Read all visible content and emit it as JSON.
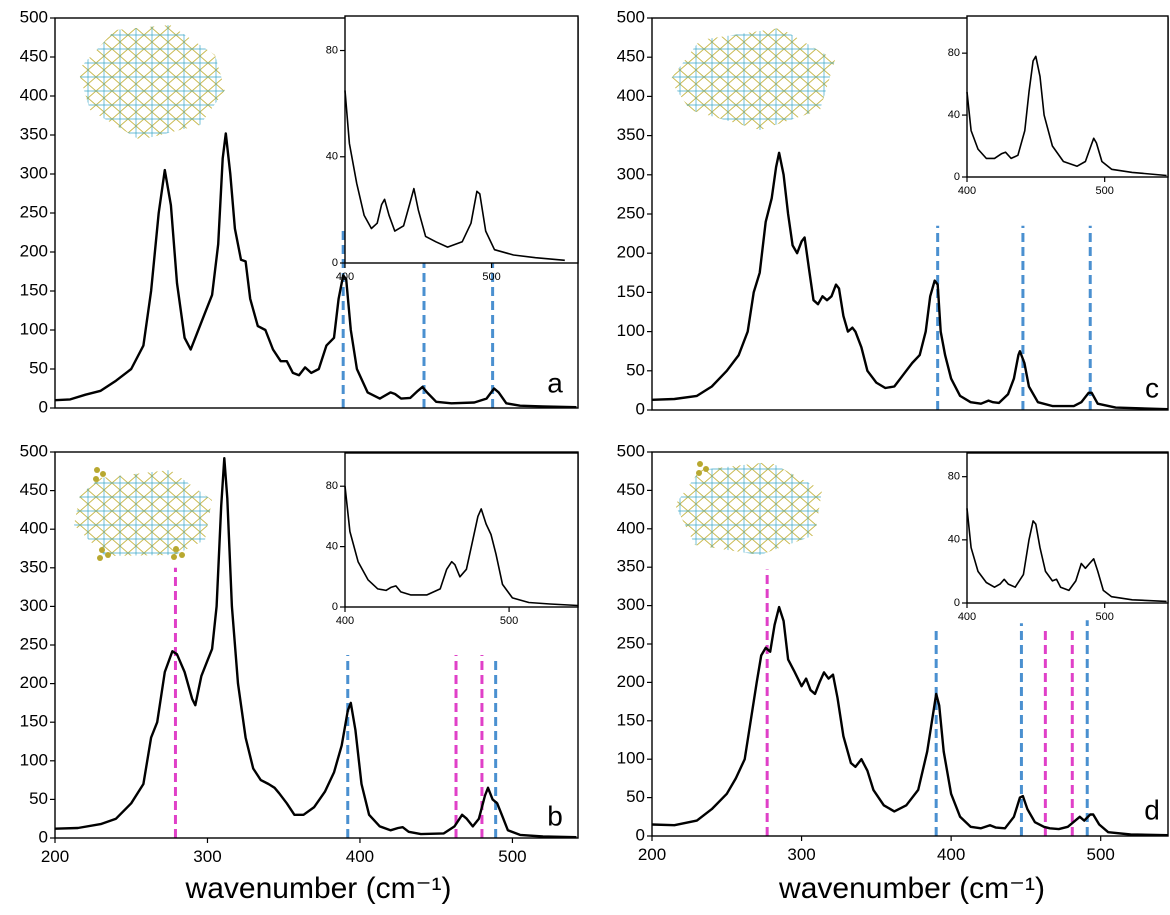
{
  "chart_data": [
    {
      "type": "line",
      "label": "a",
      "color": "#000000",
      "x": [
        200,
        210,
        220,
        230,
        240,
        250,
        258,
        263,
        268,
        272,
        276,
        280,
        285,
        289,
        293,
        298,
        303,
        307,
        310,
        312,
        315,
        318,
        322,
        325,
        328,
        333,
        338,
        343,
        348,
        352,
        356,
        360,
        364,
        368,
        373,
        378,
        383,
        386,
        389,
        391,
        394,
        398,
        405,
        413,
        420,
        423,
        427,
        433,
        438,
        441,
        444,
        450,
        460,
        475,
        483,
        488,
        491,
        496,
        505,
        520,
        542
      ],
      "values": [
        10,
        11,
        17,
        22,
        35,
        50,
        80,
        150,
        250,
        305,
        260,
        160,
        90,
        75,
        95,
        120,
        145,
        210,
        320,
        352,
        300,
        230,
        190,
        188,
        140,
        105,
        100,
        75,
        60,
        60,
        45,
        42,
        52,
        45,
        50,
        80,
        90,
        140,
        170,
        165,
        100,
        50,
        20,
        12,
        20,
        18,
        12,
        13,
        22,
        27,
        20,
        8,
        6,
        7,
        12,
        25,
        20,
        6,
        3,
        2,
        1
      ],
      "xlim": [
        200,
        543
      ],
      "ylim": [
        0,
        500
      ],
      "yticks": [
        0,
        50,
        100,
        150,
        200,
        250,
        300,
        350,
        400,
        450,
        500
      ],
      "vlines": [
        {
          "x": 389,
          "top": 230,
          "color": "#4a90d0"
        },
        {
          "x": 442,
          "top": 230,
          "color": "#4a90d0"
        },
        {
          "x": 487,
          "top": 230,
          "color": "#4a90d0"
        }
      ],
      "inset": {
        "type": "line",
        "color": "#000000",
        "x": [
          400,
          403,
          408,
          413,
          418,
          422,
          425,
          427,
          430,
          434,
          440,
          444,
          447,
          450,
          455,
          462,
          470,
          480,
          486,
          490,
          492,
          496,
          502,
          515,
          530,
          550
        ],
        "values": [
          65,
          45,
          30,
          18,
          13,
          15,
          22,
          24,
          18,
          12,
          14,
          22,
          28,
          20,
          10,
          8,
          6,
          8,
          15,
          27,
          26,
          12,
          5,
          3,
          2,
          1
        ],
        "xlim": [
          400,
          559
        ],
        "ylim": [
          0,
          93
        ],
        "xticks": [
          400,
          500
        ],
        "yticks": [
          0,
          40,
          80
        ]
      }
    },
    {
      "type": "line",
      "label": "b",
      "color": "#000000",
      "x": [
        200,
        215,
        230,
        240,
        250,
        258,
        263,
        267,
        272,
        277,
        280,
        285,
        290,
        292,
        296,
        300,
        303,
        306,
        309,
        311,
        313,
        316,
        320,
        325,
        330,
        335,
        340,
        344,
        347,
        352,
        357,
        363,
        370,
        377,
        383,
        388,
        392,
        394,
        397,
        401,
        406,
        413,
        420,
        425,
        428,
        432,
        440,
        455,
        462,
        467,
        470,
        474,
        478,
        482,
        484,
        487,
        490,
        493,
        497,
        505,
        520,
        542
      ],
      "values": [
        12,
        13,
        18,
        25,
        45,
        70,
        130,
        150,
        215,
        242,
        238,
        215,
        180,
        172,
        210,
        230,
        245,
        300,
        430,
        492,
        440,
        300,
        200,
        130,
        90,
        75,
        70,
        65,
        58,
        45,
        30,
        30,
        40,
        60,
        85,
        120,
        165,
        175,
        140,
        70,
        30,
        15,
        10,
        13,
        14,
        8,
        5,
        6,
        15,
        30,
        25,
        15,
        25,
        55,
        65,
        50,
        45,
        30,
        10,
        4,
        2,
        1
      ],
      "xlim": [
        200,
        543
      ],
      "ylim": [
        0,
        500
      ],
      "yticks": [
        0,
        50,
        100,
        150,
        200,
        250,
        300,
        350,
        400,
        450,
        500
      ],
      "xticks": [
        200,
        300,
        400,
        500
      ],
      "x_label": "wavenumber (cm⁻¹)",
      "vlines": [
        {
          "x": 279,
          "top": 350,
          "color": "#e040c8"
        },
        {
          "x": 392,
          "top": 237,
          "color": "#4a90d0"
        },
        {
          "x": 463,
          "top": 237,
          "color": "#e040c8"
        },
        {
          "x": 480,
          "top": 237,
          "color": "#e040c8"
        },
        {
          "x": 489,
          "top": 231,
          "color": "#4a90d0"
        }
      ],
      "inset": {
        "type": "line",
        "color": "#000000",
        "x": [
          400,
          403,
          408,
          414,
          420,
          425,
          428,
          431,
          434,
          440,
          450,
          458,
          462,
          465,
          467,
          470,
          474,
          478,
          481,
          483,
          486,
          489,
          492,
          496,
          502,
          512,
          525,
          542
        ],
        "values": [
          80,
          50,
          30,
          18,
          12,
          11,
          13,
          14,
          10,
          8,
          8,
          12,
          25,
          30,
          28,
          20,
          25,
          45,
          60,
          65,
          55,
          48,
          35,
          15,
          6,
          3,
          2,
          1
        ],
        "xlim": [
          400,
          542
        ],
        "ylim": [
          0,
          102
        ],
        "xticks": [
          400,
          500
        ],
        "yticks": [
          0,
          40,
          80
        ]
      }
    },
    {
      "type": "line",
      "label": "c",
      "color": "#000000",
      "x": [
        200,
        215,
        230,
        240,
        250,
        258,
        264,
        268,
        272,
        276,
        280,
        283,
        285,
        288,
        291,
        294,
        297,
        300,
        302,
        305,
        308,
        311,
        314,
        317,
        320,
        323,
        325,
        328,
        331,
        334,
        336,
        340,
        344,
        350,
        356,
        362,
        368,
        374,
        379,
        383,
        386,
        389,
        391,
        393,
        396,
        400,
        406,
        413,
        420,
        425,
        428,
        432,
        438,
        442,
        445,
        446,
        449,
        452,
        458,
        468,
        482,
        487,
        492,
        494,
        498,
        510,
        545
      ],
      "values": [
        13,
        14,
        18,
        30,
        50,
        70,
        100,
        150,
        175,
        240,
        270,
        310,
        328,
        300,
        250,
        210,
        200,
        215,
        220,
        180,
        140,
        135,
        145,
        140,
        145,
        160,
        155,
        120,
        100,
        105,
        100,
        80,
        50,
        35,
        28,
        30,
        45,
        60,
        70,
        100,
        145,
        165,
        160,
        100,
        70,
        40,
        18,
        10,
        8,
        12,
        10,
        9,
        20,
        40,
        70,
        75,
        60,
        30,
        10,
        5,
        5,
        10,
        22,
        22,
        8,
        3,
        1
      ],
      "xlim": [
        200,
        545
      ],
      "ylim": [
        0,
        500
      ],
      "yticks": [
        0,
        50,
        100,
        150,
        200,
        250,
        300,
        350,
        400,
        450,
        500
      ],
      "vlines": [
        {
          "x": 391,
          "top": 235,
          "color": "#4a90d0"
        },
        {
          "x": 448,
          "top": 235,
          "color": "#4a90d0"
        },
        {
          "x": 493,
          "top": 235,
          "color": "#4a90d0"
        }
      ],
      "inset": {
        "type": "line",
        "color": "#000000",
        "x": [
          400,
          403,
          408,
          414,
          420,
          425,
          428,
          432,
          437,
          442,
          445,
          448,
          450,
          453,
          456,
          462,
          470,
          480,
          486,
          490,
          492,
          494,
          498,
          505,
          520,
          545
        ],
        "values": [
          55,
          30,
          18,
          12,
          12,
          15,
          16,
          12,
          14,
          30,
          55,
          75,
          78,
          65,
          40,
          20,
          10,
          7,
          10,
          20,
          25,
          22,
          10,
          5,
          3,
          1
        ],
        "xlim": [
          400,
          546
        ],
        "ylim": [
          0,
          104
        ],
        "xticks": [
          400,
          500
        ],
        "yticks": [
          0,
          40,
          80
        ]
      }
    },
    {
      "type": "line",
      "label": "d",
      "color": "#000000",
      "x": [
        200,
        215,
        230,
        240,
        250,
        256,
        262,
        266,
        270,
        273,
        276,
        279,
        282,
        285,
        288,
        291,
        295,
        300,
        303,
        306,
        309,
        312,
        315,
        318,
        321,
        324,
        328,
        333,
        336,
        340,
        344,
        348,
        355,
        362,
        370,
        378,
        384,
        388,
        390,
        392,
        395,
        400,
        406,
        413,
        420,
        426,
        430,
        436,
        442,
        446,
        448,
        451,
        456,
        462,
        466,
        472,
        478,
        483,
        486,
        489,
        493,
        495,
        499,
        505,
        520,
        545
      ],
      "values": [
        15,
        14,
        20,
        35,
        55,
        75,
        100,
        150,
        200,
        235,
        245,
        240,
        275,
        298,
        280,
        230,
        215,
        195,
        205,
        190,
        185,
        200,
        213,
        205,
        210,
        180,
        130,
        95,
        90,
        100,
        85,
        60,
        40,
        32,
        40,
        60,
        110,
        160,
        185,
        170,
        110,
        55,
        25,
        12,
        10,
        14,
        11,
        10,
        25,
        50,
        52,
        35,
        18,
        12,
        10,
        9,
        12,
        20,
        25,
        20,
        28,
        28,
        15,
        5,
        2,
        1
      ],
      "xlim": [
        200,
        545
      ],
      "ylim": [
        0,
        500
      ],
      "yticks": [
        0,
        50,
        100,
        150,
        200,
        250,
        300,
        350,
        400,
        450,
        500
      ],
      "xticks": [
        200,
        300,
        400,
        500
      ],
      "x_label": "wavenumber (cm⁻¹)",
      "vlines": [
        {
          "x": 277,
          "top": 347,
          "color": "#e040c8"
        },
        {
          "x": 390,
          "top": 272,
          "color": "#4a90d0"
        },
        {
          "x": 447,
          "top": 277,
          "color": "#4a90d0"
        },
        {
          "x": 463,
          "top": 272,
          "color": "#e040c8"
        },
        {
          "x": 481,
          "top": 272,
          "color": "#e040c8"
        },
        {
          "x": 491,
          "top": 281,
          "color": "#4a90d0"
        }
      ],
      "inset": {
        "type": "line",
        "color": "#000000",
        "x": [
          400,
          403,
          408,
          414,
          420,
          424,
          427,
          430,
          435,
          441,
          445,
          448,
          450,
          453,
          457,
          462,
          465,
          468,
          474,
          479,
          483,
          486,
          489,
          492,
          495,
          499,
          505,
          520,
          545
        ],
        "values": [
          60,
          35,
          20,
          13,
          10,
          12,
          15,
          12,
          10,
          18,
          40,
          52,
          50,
          35,
          20,
          14,
          15,
          10,
          8,
          14,
          25,
          22,
          25,
          28,
          20,
          8,
          4,
          2,
          1
        ],
        "xlim": [
          400,
          546
        ],
        "ylim": [
          0,
          95
        ],
        "xticks": [
          400,
          500
        ],
        "yticks": [
          0,
          40,
          80
        ]
      }
    }
  ]
}
